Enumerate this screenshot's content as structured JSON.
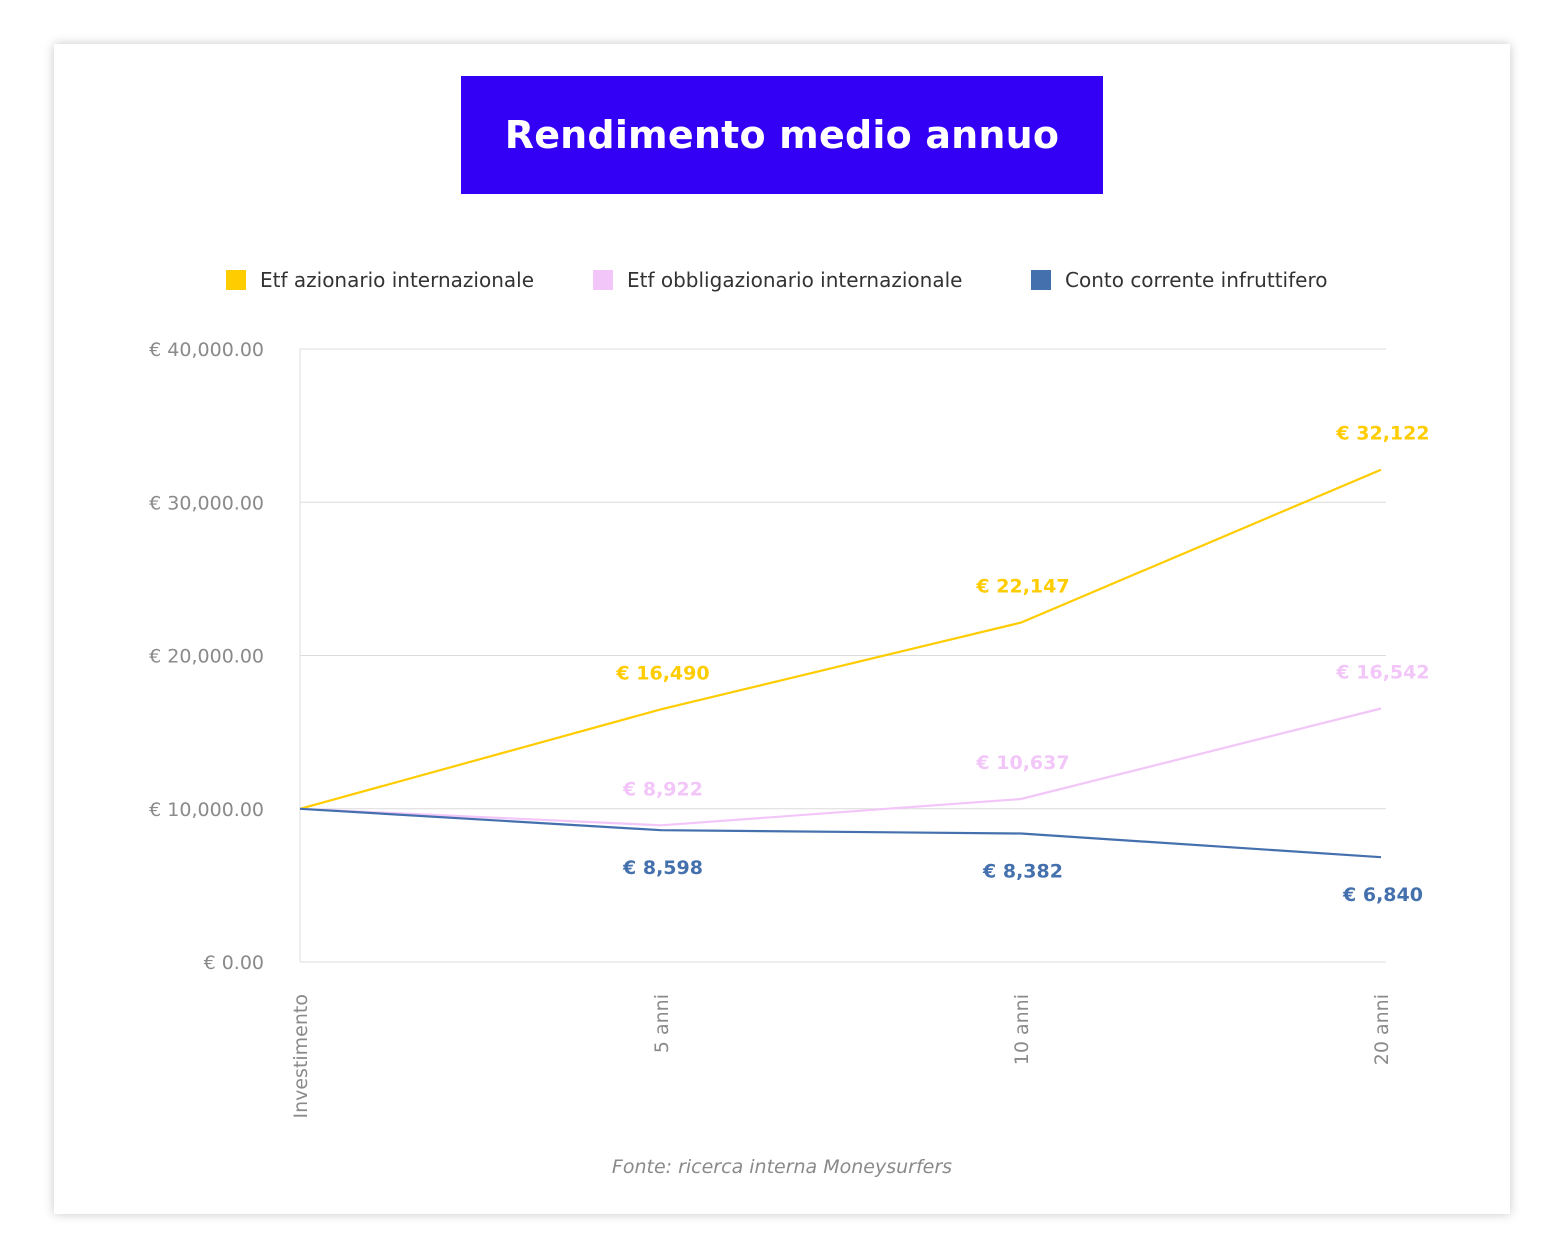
{
  "source_note": "Fonte: ricerca interna Moneysurfers",
  "chart_data": {
    "type": "line",
    "title": "Rendimento medio annuo",
    "categories": [
      "Investimento",
      "5 anni",
      "10 anni",
      "20 anni"
    ],
    "ylim": [
      0,
      40000
    ],
    "yticks": [
      0,
      10000,
      20000,
      30000,
      40000
    ],
    "ytick_labels": [
      "€ 0.00",
      "€ 10,000.00",
      "€ 20,000.00",
      "€ 30,000.00",
      "€ 40,000.00"
    ],
    "grid": true,
    "legend_position": "top",
    "series": [
      {
        "name": "Etf azionario internazionale",
        "color": "#ffcc00",
        "values": [
          10000,
          16490,
          22147,
          32122
        ],
        "labels": [
          "",
          "€ 16,490",
          "€ 22,147",
          "€ 32,122"
        ],
        "label_position": "above"
      },
      {
        "name": "Etf obbligazionario internazionale",
        "color": "#f3c6f9",
        "values": [
          10000,
          8922,
          10637,
          16542
        ],
        "labels": [
          "",
          "€ 8,922",
          "€ 10,637",
          "€ 16,542"
        ],
        "label_position": "above"
      },
      {
        "name": "Conto corrente infruttifero",
        "color": "#4470ad",
        "values": [
          10000,
          8598,
          8382,
          6840
        ],
        "labels": [
          "",
          "€ 8,598",
          "€ 8,382",
          "€ 6,840"
        ],
        "label_position": "below"
      }
    ]
  }
}
